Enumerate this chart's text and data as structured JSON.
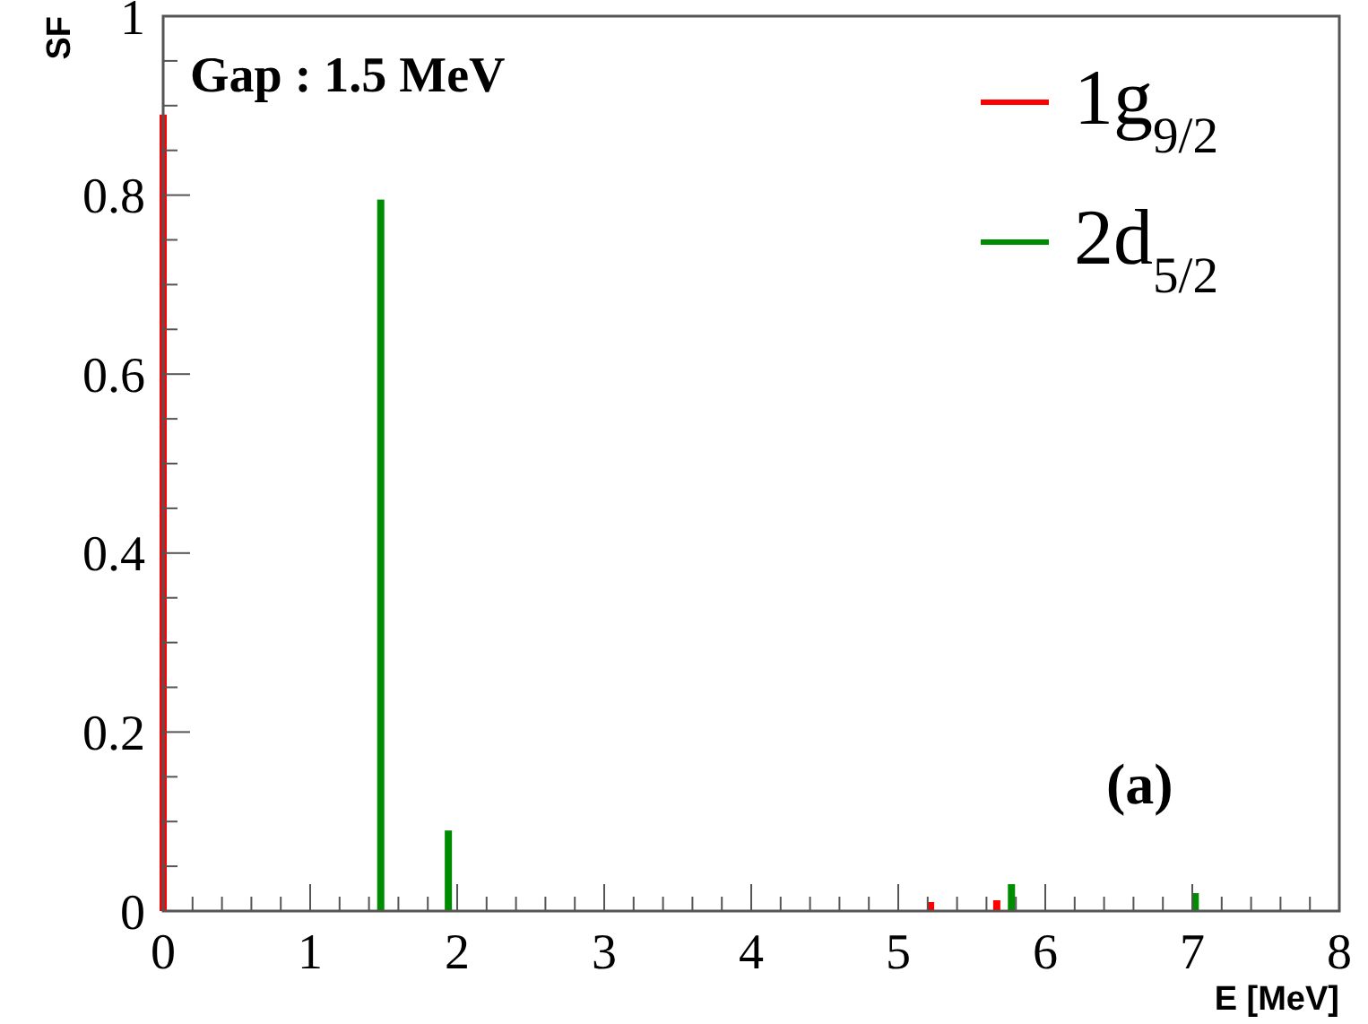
{
  "chart_data": {
    "type": "bar",
    "title": "Gap : 1.5 MeV",
    "xlabel": "E [MeV]",
    "ylabel": "SF",
    "annotations": [
      "(a)"
    ],
    "series": [
      {
        "name": "1g$_{9/2}$",
        "color": "#ff0000",
        "x": [
          0,
          5.22,
          5.67
        ],
        "values": [
          0.89,
          0.01,
          0.012
        ]
      },
      {
        "name": "2d$_{5/2}$",
        "color": "#008c00",
        "x": [
          1.48,
          1.94,
          5.77,
          7.02
        ],
        "values": [
          0.795,
          0.09,
          0.03,
          0.02
        ]
      }
    ],
    "xlim": [
      0,
      8
    ],
    "xticks": [
      0,
      {
        "value": 0.2,
        "label": null
      },
      {
        "value": 0.4,
        "label": null
      },
      {
        "value": 0.6,
        "label": null
      },
      {
        "value": 0.8,
        "label": null
      },
      1,
      {
        "value": 1.2,
        "label": null
      },
      {
        "value": 1.4,
        "label": null
      },
      {
        "value": 1.6,
        "label": null
      },
      {
        "value": 1.8,
        "label": null
      },
      2,
      {
        "value": 2.2,
        "label": null
      },
      {
        "value": 2.4,
        "label": null
      },
      {
        "value": 2.6,
        "label": null
      },
      {
        "value": 2.8,
        "label": null
      },
      3,
      {
        "value": 3.2,
        "label": null
      },
      {
        "value": 3.4,
        "label": null
      },
      {
        "value": 3.6,
        "label": null
      },
      {
        "value": 3.8,
        "label": null
      },
      4,
      {
        "value": 4.2,
        "label": null
      },
      {
        "value": 4.4,
        "label": null
      },
      {
        "value": 4.6,
        "label": null
      },
      {
        "value": 4.8,
        "label": null
      },
      5,
      {
        "value": 5.2,
        "label": null
      },
      {
        "value": 5.4,
        "label": null
      },
      {
        "value": 5.6,
        "label": null
      },
      {
        "value": 5.8,
        "label": null
      },
      6,
      {
        "value": 6.2,
        "label": null
      },
      {
        "value": 6.4,
        "label": null
      },
      {
        "value": 6.6,
        "label": null
      },
      {
        "value": 6.8,
        "label": null
      },
      7,
      {
        "value": 7.2,
        "label": null
      },
      {
        "value": 7.4,
        "label": null
      },
      {
        "value": 7.6,
        "label": null
      },
      {
        "value": 7.8,
        "label": null
      },
      8
    ],
    "ylim": [
      0,
      1
    ],
    "yticks": [
      0,
      {
        "value": 0.05,
        "label": null
      },
      {
        "value": 0.1,
        "label": null
      },
      {
        "value": 0.15,
        "label": null
      },
      0.2,
      {
        "value": 0.25,
        "label": null
      },
      {
        "value": 0.3,
        "label": null
      },
      {
        "value": 0.35,
        "label": null
      },
      0.4,
      {
        "value": 0.45,
        "label": null
      },
      {
        "value": 0.5,
        "label": null
      },
      {
        "value": 0.55,
        "label": null
      },
      0.6,
      {
        "value": 0.65,
        "label": null
      },
      {
        "value": 0.7,
        "label": null
      },
      {
        "value": 0.75,
        "label": null
      },
      0.8,
      {
        "value": 0.85,
        "label": null
      },
      {
        "value": 0.9,
        "label": null
      },
      {
        "value": 0.95,
        "label": null
      },
      1
    ],
    "grid": false,
    "legend": "top right"
  }
}
